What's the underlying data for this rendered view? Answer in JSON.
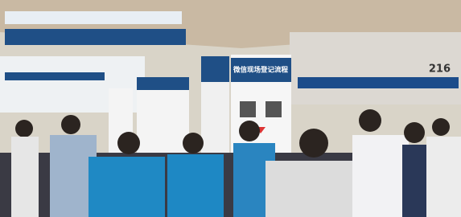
{
  "signs": {
    "registration": "微信现场登记流程",
    "booth_number": "216"
  }
}
